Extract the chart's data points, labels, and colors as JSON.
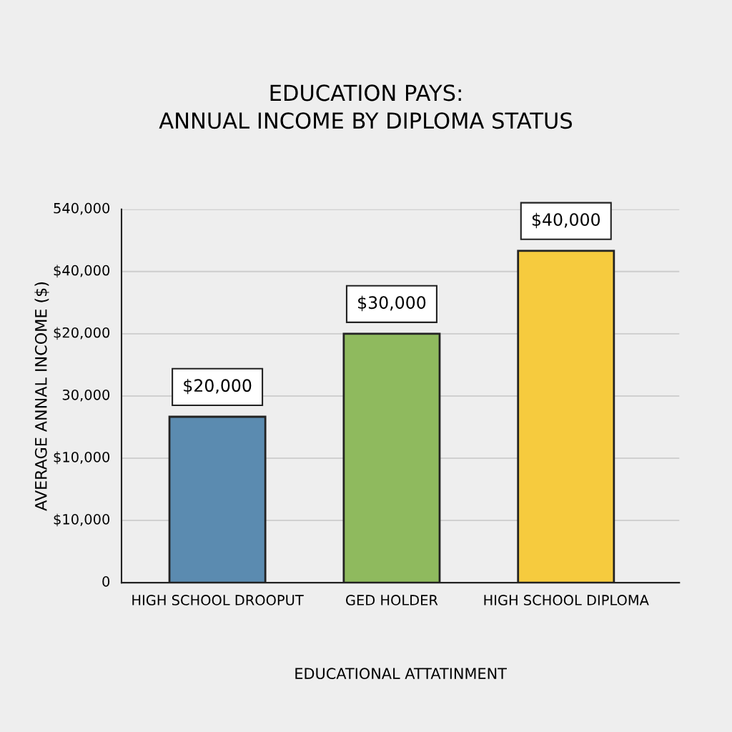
{
  "chart_data": {
    "type": "bar",
    "title": "EDUCATION PAYS:\nANNUAL INCOME BY DIPLOMA STATUS",
    "xlabel": "EDUCATIONAL ATTATINMENT",
    "ylabel": "AVERAGE ANNAL INCOME ($)",
    "categories": [
      "HIGH SCHOOL DROOPUT",
      "GED HOLDER",
      "HIGH SCHOOL DIPLOMA"
    ],
    "values": [
      20000,
      30000,
      40000
    ],
    "colors": [
      "#5b8bb0",
      "#8fba5e",
      "#f6cb3e"
    ],
    "value_labels": [
      "$20,000",
      "$30,000",
      "$40,000"
    ],
    "ylim": [
      0,
      45000
    ],
    "annotations": [
      "0",
      "$10,000",
      "$10,000",
      "30,000",
      "$20,000",
      "$40,000",
      "540,000"
    ],
    "grid": "y",
    "legend": false
  }
}
